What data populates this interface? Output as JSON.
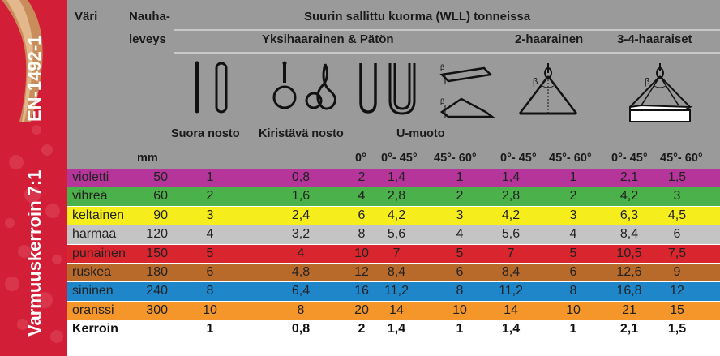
{
  "side": {
    "standard": "EN-1492-1",
    "safety_factor": "Varmuuskerroin 7:1"
  },
  "header": {
    "col_color": "Väri",
    "col_width_line1": "Nauha-",
    "col_width_line2": "leveys",
    "title": "Suurin sallittu kuorma (WLL) tonneissa",
    "group_single": "Yksihaarainen & Pätön",
    "group_two": "2-haarainen",
    "group_three_four": "3-4-haaraiset",
    "method_straight": "Suora nosto",
    "method_choke": "Kiristävä nosto",
    "method_u": "U-muoto",
    "unit_mm": "mm",
    "angles": [
      "0°",
      "0°- 45°",
      "45°- 60°",
      "0°- 45°",
      "45°- 60°",
      "0°- 45°",
      "45°- 60°"
    ],
    "beta": "β"
  },
  "rows": [
    {
      "color": "violetti",
      "width": "50",
      "vals": [
        "1",
        "0,8",
        "2",
        "1,4",
        "1",
        "1,4",
        "1",
        "2,1",
        "1,5"
      ],
      "bg": "#b5359a"
    },
    {
      "color": "vihreä",
      "width": "60",
      "vals": [
        "2",
        "1,6",
        "4",
        "2,8",
        "2",
        "2,8",
        "2",
        "4,2",
        "3"
      ],
      "bg": "#4bb14a"
    },
    {
      "color": "keltainen",
      "width": "90",
      "vals": [
        "3",
        "2,4",
        "6",
        "4,2",
        "3",
        "4,2",
        "3",
        "6,3",
        "4,5"
      ],
      "bg": "#f6ee1c"
    },
    {
      "color": "harmaa",
      "width": "120",
      "vals": [
        "4",
        "3,2",
        "8",
        "5,6",
        "4",
        "5,6",
        "4",
        "8,4",
        "6"
      ],
      "bg": "#c4c4c4"
    },
    {
      "color": "punainen",
      "width": "150",
      "vals": [
        "5",
        "4",
        "10",
        "7",
        "5",
        "7",
        "5",
        "10,5",
        "7,5"
      ],
      "bg": "#d9252e"
    },
    {
      "color": "ruskea",
      "width": "180",
      "vals": [
        "6",
        "4,8",
        "12",
        "8,4",
        "6",
        "8,4",
        "6",
        "12,6",
        "9"
      ],
      "bg": "#b86a2b"
    },
    {
      "color": "sininen",
      "width": "240",
      "vals": [
        "8",
        "6,4",
        "16",
        "11,2",
        "8",
        "11,2",
        "8",
        "16,8",
        "12"
      ],
      "bg": "#1f87c9"
    },
    {
      "color": "oranssi",
      "width": "300",
      "vals": [
        "10",
        "8",
        "20",
        "14",
        "10",
        "14",
        "10",
        "21",
        "15"
      ],
      "bg": "#f4962a"
    }
  ],
  "factor_row": {
    "label": "Kerroin",
    "vals": [
      "1",
      "0,8",
      "2",
      "1,4",
      "1",
      "1,4",
      "1",
      "2,1",
      "1,5"
    ]
  }
}
